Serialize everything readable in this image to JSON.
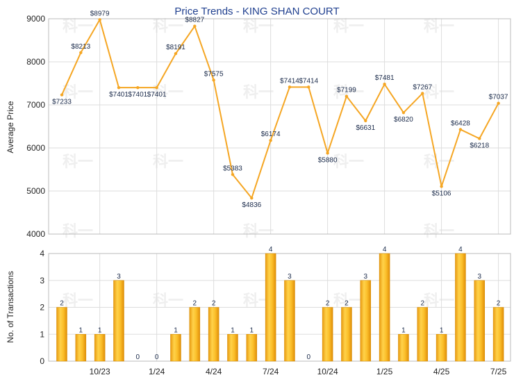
{
  "chart_data": [
    {
      "type": "line",
      "title": "Price Trends - KING SHAN COURT",
      "ylabel": "Average Price",
      "ylim": [
        4000,
        9000
      ],
      "yticks": [
        4000,
        5000,
        6000,
        7000,
        8000,
        9000
      ],
      "color": "#f5a623",
      "x": [
        "2023-08",
        "2023-09",
        "2023-10",
        "2023-11",
        "2023-12",
        "2024-01",
        "2024-02",
        "2024-03",
        "2024-04",
        "2024-05",
        "2024-06",
        "2024-07",
        "2024-08",
        "2024-09",
        "2024-10",
        "2024-11",
        "2024-12",
        "2025-01",
        "2025-02",
        "2025-03",
        "2025-04",
        "2025-05",
        "2025-06",
        "2025-07"
      ],
      "values": [
        7233,
        8213,
        8979,
        7401,
        7401,
        7401,
        8191,
        8827,
        7575,
        5383,
        4836,
        6174,
        7414,
        7414,
        5880,
        7199,
        6631,
        7481,
        6820,
        7267,
        5106,
        6428,
        6218,
        7037
      ],
      "labels": [
        "$7233",
        "$8213",
        "$8979",
        "$7401",
        "$7401",
        "$7401",
        "$8191",
        "$8827",
        "$7575",
        "$5383",
        "$4836",
        "$6174",
        "$7414",
        "$7414",
        "$5880",
        "$7199",
        "$6631",
        "$7481",
        "$6820",
        "$7267",
        "$5106",
        "$6428",
        "$6218",
        "$7037"
      ],
      "grid": true
    },
    {
      "type": "bar",
      "ylabel": "No. of Transactions",
      "ylim": [
        0,
        4
      ],
      "yticks": [
        0,
        1,
        2,
        3,
        4
      ],
      "color": "#f5b020",
      "x": [
        "2023-08",
        "2023-09",
        "2023-10",
        "2023-11",
        "2023-12",
        "2024-01",
        "2024-02",
        "2024-03",
        "2024-04",
        "2024-05",
        "2024-06",
        "2024-07",
        "2024-08",
        "2024-09",
        "2024-10",
        "2024-11",
        "2024-12",
        "2025-01",
        "2025-02",
        "2025-03",
        "2025-04",
        "2025-05",
        "2025-06",
        "2025-07"
      ],
      "values": [
        2,
        1,
        1,
        3,
        0,
        0,
        1,
        2,
        2,
        1,
        1,
        4,
        3,
        0,
        2,
        2,
        3,
        4,
        1,
        2,
        1,
        4,
        3,
        2
      ],
      "xtick_labels": [
        "10/23",
        "1/24",
        "4/24",
        "7/24",
        "10/24",
        "1/25",
        "4/25",
        "7/25"
      ],
      "xtick_positions": [
        "2023-10",
        "2024-01",
        "2024-04",
        "2024-07",
        "2024-10",
        "2025-01",
        "2025-04",
        "2025-07"
      ],
      "grid": true
    }
  ],
  "watermark_text": "科一"
}
